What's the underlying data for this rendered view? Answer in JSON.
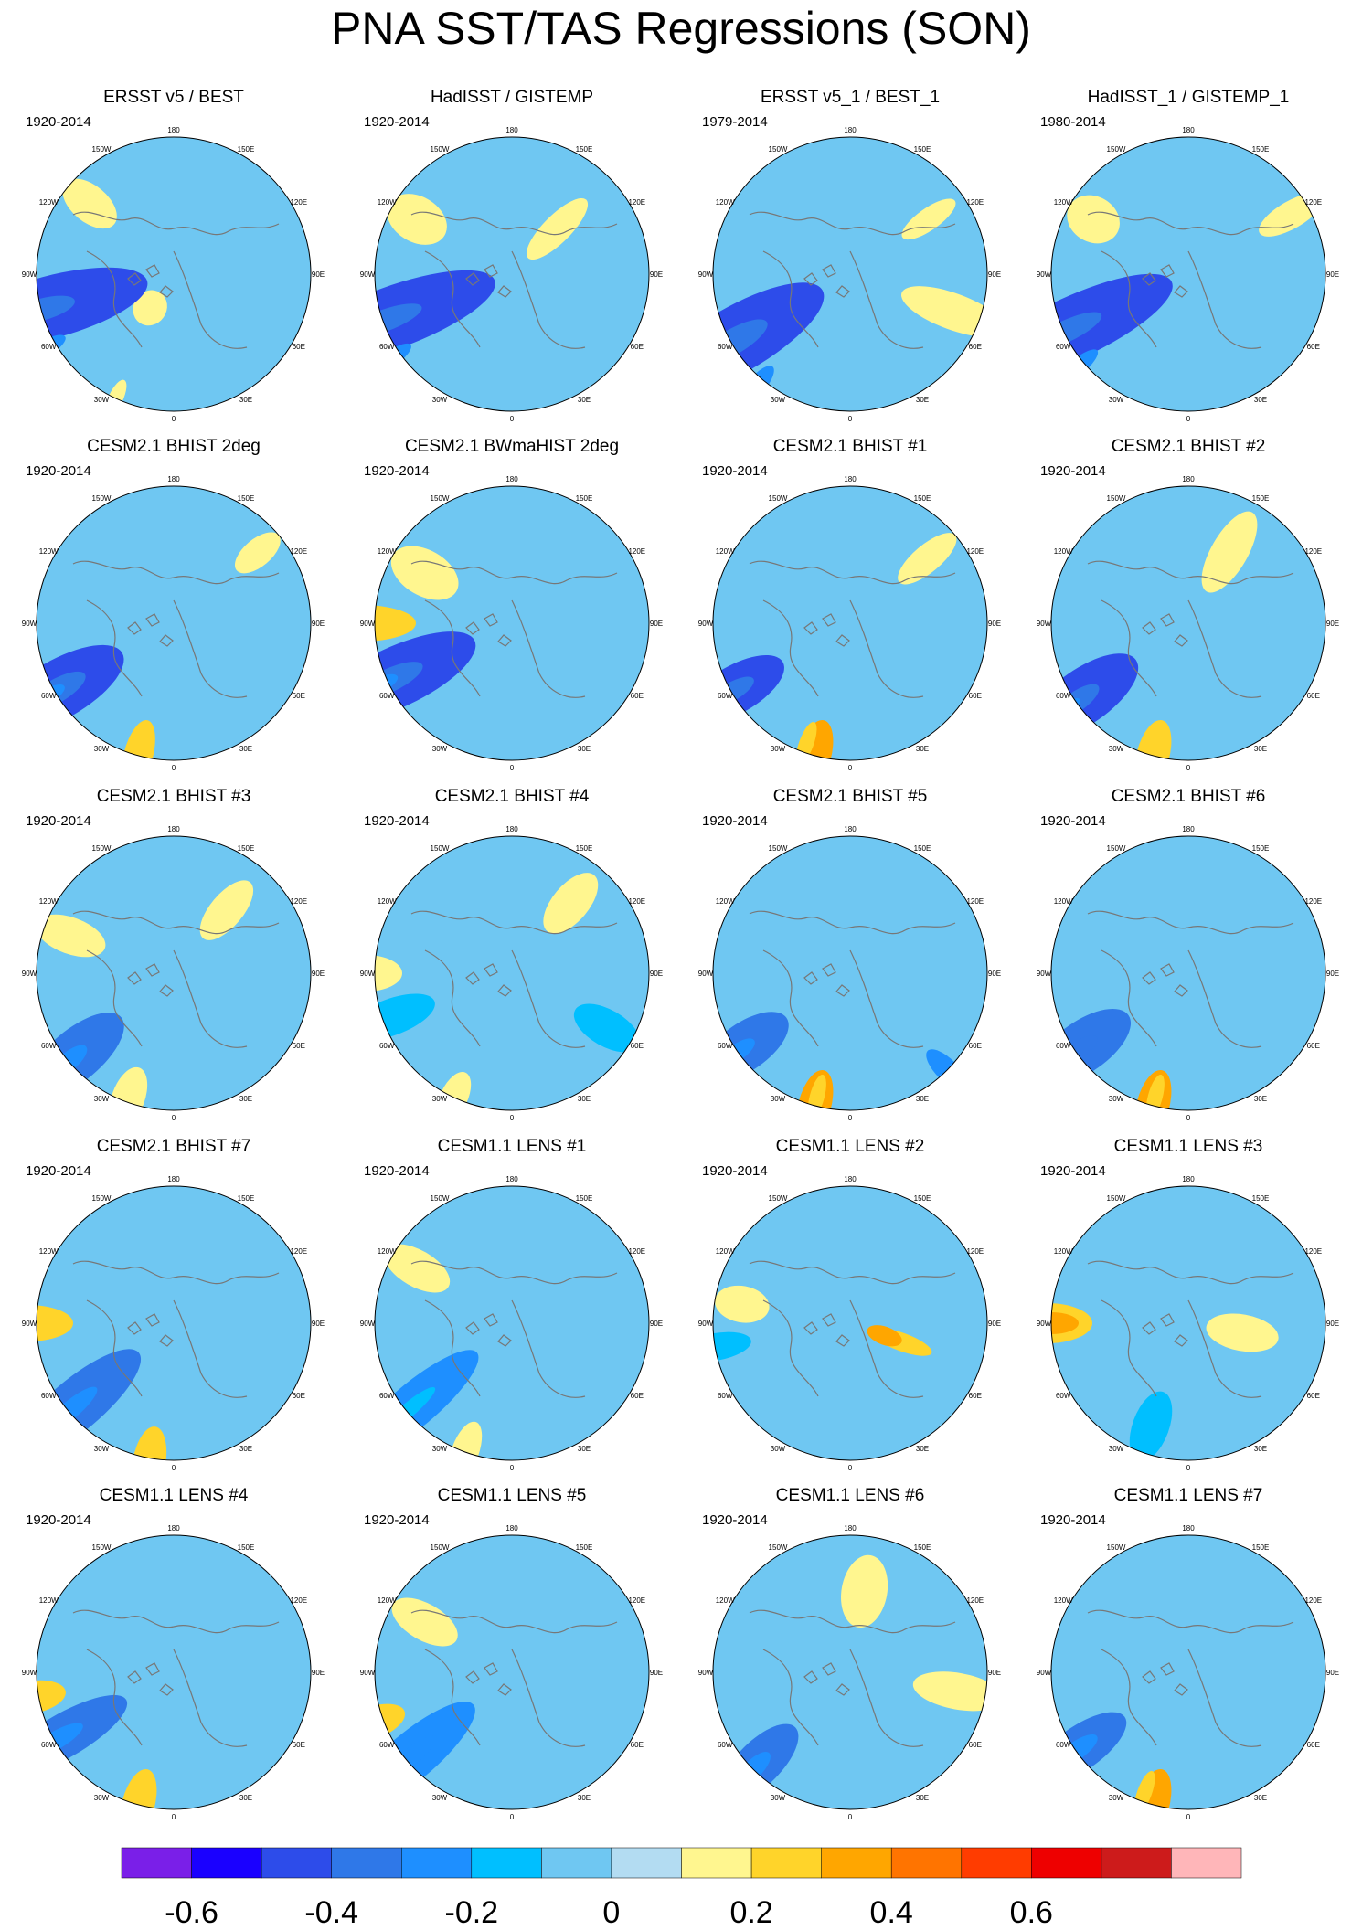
{
  "title": "PNA SST/TAS Regressions (SON)",
  "panels": [
    {
      "title": "ERSST v5 / BEST",
      "period": "1920-2014",
      "blues": [
        [
          255,
          140,
          110,
          34,
          -0.45
        ],
        [
          255,
          150,
          38,
          12,
          -0.35
        ],
        [
          240,
          165,
          28,
          9,
          -0.3
        ]
      ],
      "yellows": [
        [
          205,
          150,
          22,
          8,
          0.15
        ],
        [
          215,
          45,
          20,
          18,
          0.1
        ],
        [
          310,
          120,
          35,
          20,
          0.1
        ]
      ]
    },
    {
      "title": "HadISST / GISTEMP",
      "period": "1920-2014",
      "blues": [
        [
          250,
          140,
          120,
          34,
          -0.45
        ],
        [
          250,
          150,
          45,
          12,
          -0.35
        ],
        [
          235,
          165,
          30,
          9,
          -0.3
        ]
      ],
      "yellows": [
        [
          300,
          120,
          35,
          25,
          0.1
        ],
        [
          45,
          70,
          45,
          15,
          0.1
        ]
      ]
    },
    {
      "title": "ERSST v5_1 / BEST_1",
      "period": "1979-2014",
      "blues": [
        [
          240,
          145,
          110,
          36,
          -0.45
        ],
        [
          240,
          150,
          45,
          14,
          -0.35
        ],
        [
          220,
          160,
          28,
          10,
          -0.3
        ]
      ],
      "yellows": [
        [
          110,
          120,
          60,
          20,
          0.1
        ],
        [
          55,
          105,
          35,
          12,
          0.1
        ]
      ]
    },
    {
      "title": "HadISST_1 / GISTEMP_1",
      "period": "1980-2014",
      "blues": [
        [
          245,
          140,
          120,
          34,
          -0.45
        ],
        [
          245,
          150,
          45,
          12,
          -0.35
        ],
        [
          230,
          160,
          30,
          9,
          -0.3
        ]
      ],
      "yellows": [
        [
          300,
          120,
          30,
          25,
          0.1
        ],
        [
          60,
          130,
          40,
          15,
          0.1
        ]
      ]
    },
    {
      "title": "CESM2.1 BHIST 2deg",
      "period": "1920-2014",
      "blues": [
        [
          240,
          145,
          80,
          32,
          -0.45
        ],
        [
          240,
          150,
          38,
          13,
          -0.35
        ],
        [
          240,
          160,
          22,
          8,
          -0.3
        ]
      ],
      "yellows": [
        [
          195,
          150,
          40,
          16,
          0.2
        ],
        [
          50,
          120,
          30,
          15,
          0.1
        ]
      ]
    },
    {
      "title": "CESM2.1 BWmaHIST 2deg",
      "period": "1920-2014",
      "blues": [
        [
          245,
          140,
          95,
          33,
          -0.45
        ],
        [
          245,
          150,
          42,
          13,
          -0.35
        ],
        [
          245,
          160,
          22,
          8,
          -0.3
        ]
      ],
      "yellows": [
        [
          270,
          165,
          60,
          20,
          0.2
        ],
        [
          300,
          110,
          40,
          25,
          0.1
        ]
      ]
    },
    {
      "title": "CESM2.1 BHIST #1",
      "period": "1920-2014",
      "blues": [
        [
          240,
          145,
          60,
          26,
          -0.45
        ],
        [
          240,
          150,
          28,
          10,
          -0.35
        ]
      ],
      "yellows": [
        [
          195,
          150,
          40,
          18,
          0.3
        ],
        [
          200,
          140,
          25,
          8,
          0.2
        ],
        [
          50,
          110,
          40,
          15,
          0.1
        ]
      ]
    },
    {
      "title": "CESM2.1 BHIST #2",
      "period": "1920-2014",
      "blues": [
        [
          235,
          140,
          70,
          30,
          -0.45
        ],
        [
          235,
          150,
          30,
          11,
          -0.35
        ],
        [
          235,
          160,
          15,
          6,
          -0.3
        ]
      ],
      "yellows": [
        [
          195,
          150,
          40,
          18,
          0.2
        ],
        [
          30,
          90,
          50,
          20,
          0.1
        ]
      ]
    },
    {
      "title": "CESM2.1 BHIST #3",
      "period": "1920-2014",
      "blues": [
        [
          230,
          140,
          65,
          28,
          -0.35
        ],
        [
          230,
          150,
          25,
          10,
          -0.3
        ]
      ],
      "yellows": [
        [
          200,
          145,
          35,
          18,
          0.1
        ],
        [
          40,
          90,
          40,
          18,
          0.1
        ],
        [
          290,
          120,
          40,
          20,
          0.1
        ]
      ]
    },
    {
      "title": "CESM2.1 BHIST #4",
      "period": "1920-2014",
      "blues": [
        [
          250,
          140,
          50,
          20,
          -0.2
        ],
        [
          120,
          120,
          40,
          20,
          -0.2
        ]
      ],
      "yellows": [
        [
          205,
          150,
          30,
          15,
          0.1
        ],
        [
          270,
          160,
          40,
          20,
          0.1
        ],
        [
          40,
          100,
          40,
          20,
          0.1
        ]
      ]
    },
    {
      "title": "CESM2.1 BHIST #5",
      "period": "1920-2014",
      "blues": [
        [
          235,
          140,
          55,
          26,
          -0.35
        ],
        [
          235,
          150,
          22,
          9,
          -0.3
        ],
        [
          135,
          150,
          30,
          12,
          -0.3
        ]
      ],
      "yellows": [
        [
          195,
          150,
          40,
          18,
          0.3
        ],
        [
          195,
          140,
          25,
          8,
          0.2
        ]
      ]
    },
    {
      "title": "CESM2.1 BHIST #6",
      "period": "1920-2014",
      "blues": [
        [
          235,
          140,
          60,
          28,
          -0.4
        ],
        [
          235,
          150,
          28,
          10,
          -0.35
        ]
      ],
      "yellows": [
        [
          195,
          150,
          40,
          18,
          0.35
        ],
        [
          195,
          140,
          25,
          8,
          0.25
        ]
      ]
    },
    {
      "title": "CESM2.1 BHIST #7",
      "period": "1920-2014",
      "blues": [
        [
          230,
          140,
          90,
          28,
          -0.35
        ],
        [
          230,
          150,
          40,
          10,
          -0.3
        ]
      ],
      "yellows": [
        [
          190,
          155,
          40,
          18,
          0.2
        ],
        [
          270,
          160,
          50,
          20,
          0.25
        ]
      ]
    },
    {
      "title": "CESM1.1 LENS #1",
      "period": "1920-2014",
      "blues": [
        [
          230,
          140,
          90,
          24,
          -0.25
        ],
        [
          230,
          150,
          40,
          8,
          -0.2
        ]
      ],
      "yellows": [
        [
          200,
          150,
          35,
          15,
          0.15
        ],
        [
          300,
          120,
          40,
          20,
          0.1
        ]
      ]
    },
    {
      "title": "CESM1.1 LENS #2",
      "period": "1920-2014",
      "blues": [
        [
          260,
          150,
          40,
          15,
          -0.2
        ]
      ],
      "yellows": [
        [
          110,
          60,
          35,
          10,
          0.2
        ],
        [
          110,
          40,
          20,
          10,
          0.3
        ],
        [
          280,
          120,
          30,
          20,
          0.1
        ]
      ]
    },
    {
      "title": "CESM1.1 LENS #3",
      "period": "1920-2014",
      "blues": [
        [
          200,
          120,
          40,
          20,
          -0.15
        ]
      ],
      "yellows": [
        [
          270,
          155,
          50,
          22,
          0.2
        ],
        [
          270,
          150,
          30,
          12,
          0.35
        ],
        [
          100,
          60,
          40,
          20,
          0.15
        ]
      ]
    },
    {
      "title": "CESM1.1 LENS #4",
      "period": "1920-2014",
      "blues": [
        [
          240,
          140,
          80,
          24,
          -0.35
        ],
        [
          240,
          150,
          35,
          10,
          -0.3
        ]
      ],
      "yellows": [
        [
          195,
          150,
          40,
          18,
          0.25
        ],
        [
          260,
          160,
          40,
          18,
          0.2
        ]
      ]
    },
    {
      "title": "CESM1.1 LENS #5",
      "period": "1920-2014",
      "blues": [
        [
          230,
          145,
          90,
          26,
          -0.3
        ],
        [
          230,
          150,
          40,
          10,
          -0.25
        ]
      ],
      "yellows": [
        [
          250,
          165,
          40,
          18,
          0.2
        ],
        [
          300,
          110,
          40,
          20,
          0.1
        ]
      ]
    },
    {
      "title": "CESM1.1 LENS #6",
      "period": "1920-2014",
      "blues": [
        [
          225,
          140,
          55,
          24,
          -0.35
        ],
        [
          225,
          150,
          25,
          10,
          -0.3
        ]
      ],
      "yellows": [
        [
          100,
          120,
          50,
          20,
          0.1
        ],
        [
          10,
          90,
          40,
          25,
          0.1
        ]
      ]
    },
    {
      "title": "CESM1.1 LENS #7",
      "period": "1920-2014",
      "blues": [
        [
          235,
          145,
          60,
          24,
          -0.35
        ],
        [
          235,
          150,
          28,
          10,
          -0.3
        ]
      ],
      "yellows": [
        [
          195,
          150,
          40,
          18,
          0.3
        ],
        [
          200,
          140,
          25,
          8,
          0.25
        ]
      ]
    }
  ],
  "lon_labels": [
    "180",
    "150E",
    "120E",
    "90E",
    "60E",
    "30E",
    "0",
    "30W",
    "60W",
    "90W",
    "120W",
    "150W"
  ],
  "colorbar": {
    "colors": [
      "#7a1fe8",
      "#1a00ff",
      "#2d4cea",
      "#2f78e8",
      "#1e8fff",
      "#00bfff",
      "#6fc7f2",
      "#b3dcf2",
      "#fff68f",
      "#ffd42a",
      "#ffa600",
      "#ff7400",
      "#ff3c00",
      "#ee0000",
      "#cd1b1b",
      "#ffb6b9"
    ],
    "labels": [
      "-0.6",
      "-0.4",
      "-0.2",
      "0",
      "0.2",
      "0.4",
      "0.6"
    ]
  }
}
